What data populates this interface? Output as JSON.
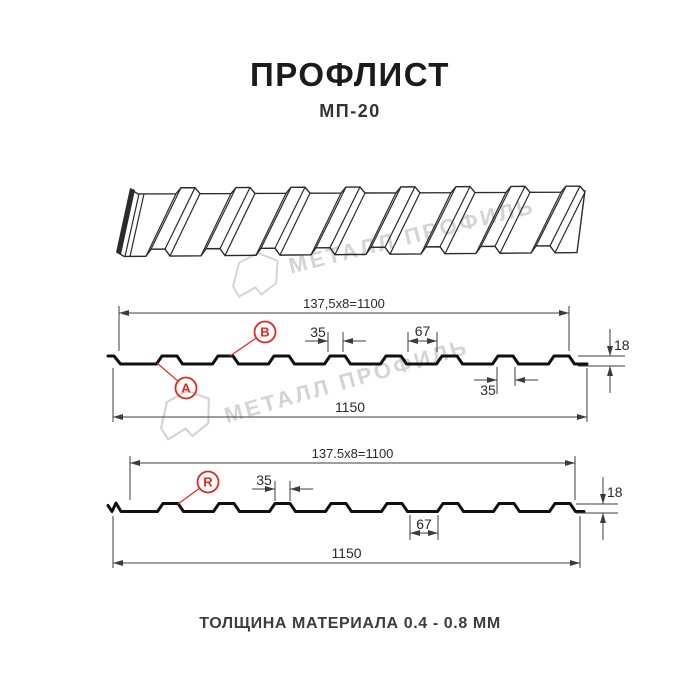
{
  "page": {
    "title": "ПРОФЛИСТ",
    "subtitle": "МП-20",
    "footer": "ТОЛЩИНА МАТЕРИАЛА 0.4 - 0.8 ММ"
  },
  "watermark": {
    "text": "МЕТАЛЛ ПРОФИЛЬ"
  },
  "colors": {
    "accent_red": "#e8261e",
    "drawing_line": "#2b2b2b",
    "profile_line": "#101010",
    "dim_line": "#3c3c3c",
    "dim_text": "#2a2a2a",
    "watermark": "#d4d4d4"
  },
  "cross_section_top": {
    "labels": {
      "a": "А",
      "b": "В"
    },
    "dims": {
      "width_pitch": "137,5x8=1100",
      "rib_top_width": "35",
      "valley_width": "67",
      "height": "18",
      "rib_bottom_width": "35",
      "total_width": "1150"
    }
  },
  "cross_section_bottom": {
    "labels": {
      "r": "R"
    },
    "dims": {
      "width_pitch": "137.5x8=1100",
      "rib_top_width": "35",
      "valley_width": "67",
      "height": "18",
      "total_width": "1150"
    }
  }
}
